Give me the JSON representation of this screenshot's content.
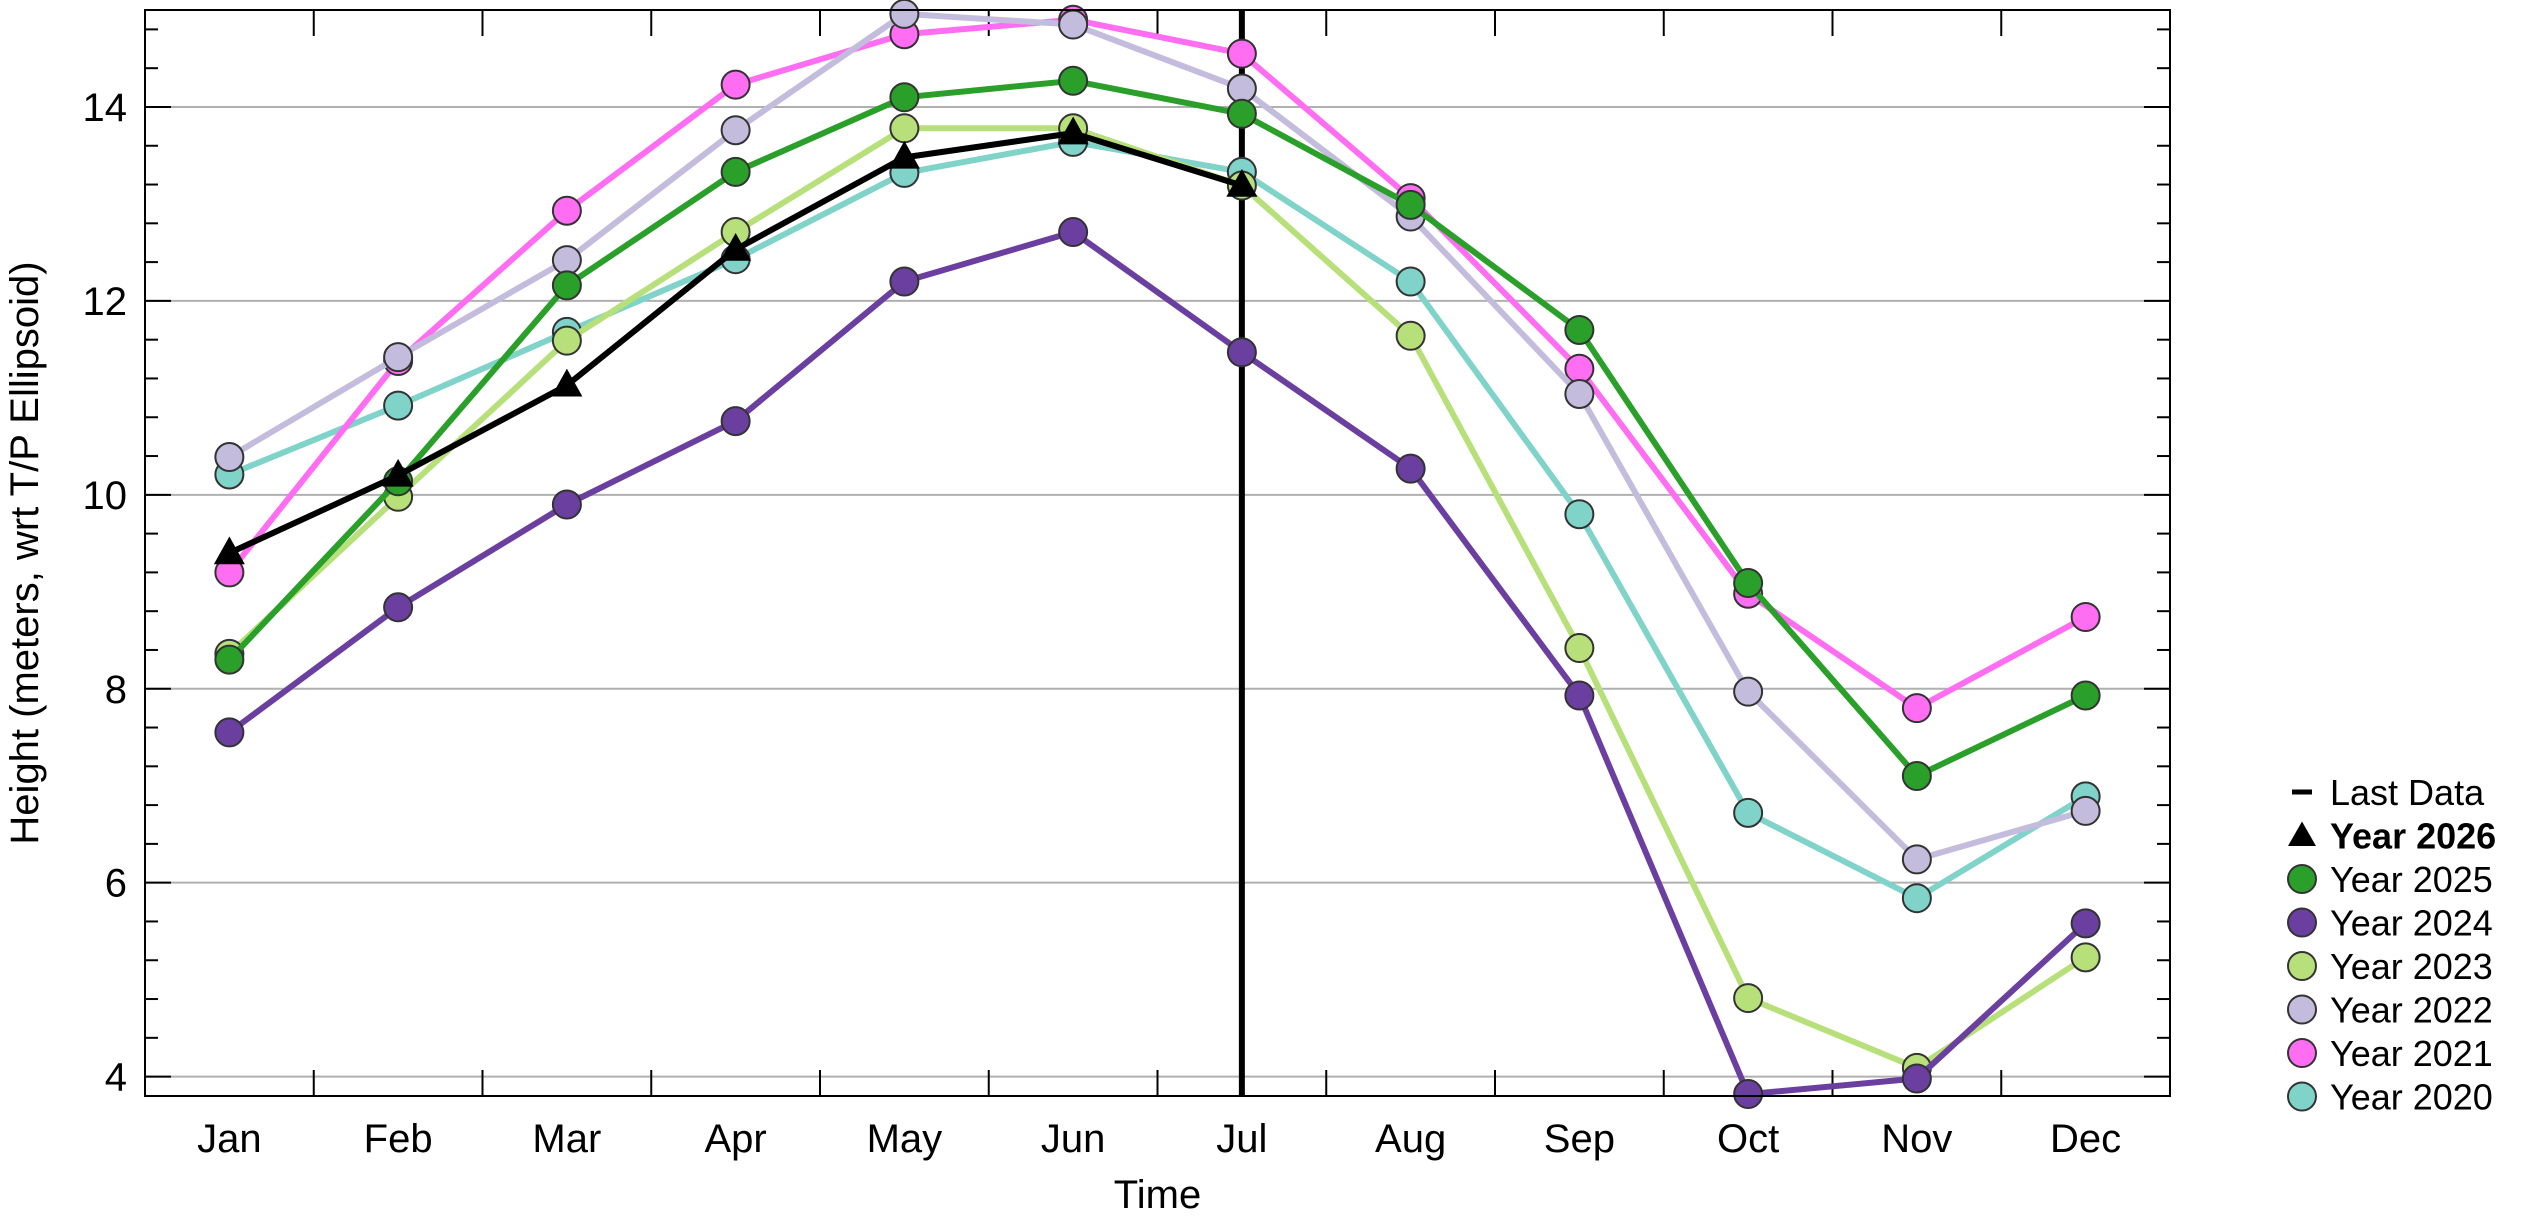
{
  "chart_data": {
    "type": "line",
    "xlabel": "Time",
    "ylabel": "Height (meters, wrt T/P Ellipsoid)",
    "categories": [
      "Jan",
      "Feb",
      "Mar",
      "Apr",
      "May",
      "Jun",
      "Jul",
      "Aug",
      "Sep",
      "Oct",
      "Nov",
      "Dec"
    ],
    "ylim": [
      3.8,
      15.0
    ],
    "yticks": [
      4,
      6,
      8,
      10,
      12,
      14
    ],
    "grid": "horizontal",
    "legend_position": "right",
    "last_data": {
      "label": "Last Data",
      "month": "Jul"
    },
    "series": [
      {
        "name": "Year 2020",
        "color": "#7fd3c8",
        "marker": "circle",
        "values": [
          10.21,
          10.92,
          11.68,
          12.43,
          13.32,
          13.64,
          13.33,
          12.2,
          9.8,
          6.72,
          5.84,
          6.89
        ]
      },
      {
        "name": "Year 2021",
        "color": "#ff6ef2",
        "marker": "circle",
        "values": [
          9.2,
          11.38,
          12.93,
          14.23,
          14.75,
          14.9,
          14.55,
          13.06,
          11.3,
          8.98,
          7.8,
          8.74
        ]
      },
      {
        "name": "Year 2022",
        "color": "#c3bcdc",
        "marker": "circle",
        "values": [
          10.39,
          11.42,
          12.42,
          13.76,
          14.96,
          14.85,
          14.19,
          12.87,
          11.04,
          7.97,
          6.24,
          6.74
        ]
      },
      {
        "name": "Year 2023",
        "color": "#b8e07a",
        "marker": "circle",
        "values": [
          8.36,
          9.98,
          11.59,
          12.71,
          13.78,
          13.78,
          13.19,
          11.64,
          8.42,
          4.81,
          4.09,
          5.23
        ]
      },
      {
        "name": "Year 2024",
        "color": "#6b3fa0",
        "marker": "circle",
        "values": [
          7.55,
          8.84,
          9.9,
          10.76,
          12.2,
          12.71,
          11.47,
          10.27,
          7.93,
          3.82,
          3.98,
          5.58
        ]
      },
      {
        "name": "Year 2025",
        "color": "#2aa02a",
        "marker": "circle",
        "values": [
          8.3,
          10.14,
          12.16,
          13.33,
          14.1,
          14.27,
          13.93,
          12.99,
          11.7,
          9.09,
          7.1,
          7.93
        ]
      },
      {
        "name": "Year 2026",
        "color": "#000000",
        "marker": "triangle",
        "bold": true,
        "values": [
          9.4,
          10.2,
          11.13,
          12.53,
          13.48,
          13.73,
          13.19,
          null,
          null,
          null,
          null,
          null
        ]
      }
    ],
    "legend_order": [
      "Last Data",
      "Year 2026",
      "Year 2025",
      "Year 2024",
      "Year 2023",
      "Year 2022",
      "Year 2021",
      "Year 2020"
    ]
  }
}
